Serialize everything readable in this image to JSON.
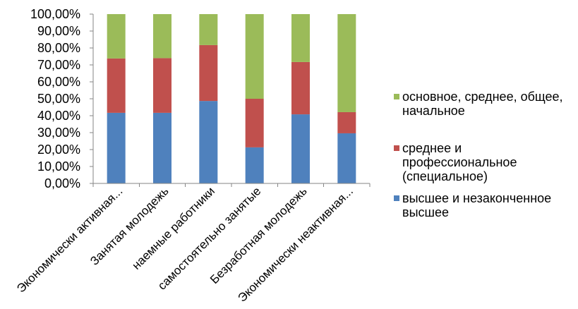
{
  "chart_data": {
    "type": "bar",
    "orientation": "vertical",
    "stacking": "percent",
    "categories": [
      "Экономически активная...",
      "Занятая молодежь",
      "наемные работники",
      "самостоятельно занятые",
      "Безработная молодежь",
      "Экономически неактивная..."
    ],
    "series": [
      {
        "name": "высшее и незаконченное высшее",
        "color": "#4F81BD",
        "values": [
          41.7,
          41.7,
          48.7,
          21.3,
          40.8,
          29.6
        ]
      },
      {
        "name": "среднее и профессиональное (специальное)",
        "color": "#C0504D",
        "values": [
          32.1,
          32.3,
          33.0,
          28.7,
          30.9,
          12.5
        ]
      },
      {
        "name": "основное, среднее, общее, начальное",
        "color": "#9BBB59",
        "values": [
          26.2,
          26.0,
          18.3,
          50.0,
          28.3,
          57.9
        ]
      }
    ],
    "ylim": [
      0,
      100
    ],
    "yticks": [
      0,
      10,
      20,
      30,
      40,
      50,
      60,
      70,
      80,
      90,
      100
    ],
    "ytick_labels": [
      "0,00%",
      "10,00%",
      "20,00%",
      "30,00%",
      "40,00%",
      "50,00%",
      "60,00%",
      "70,00%",
      "80,00%",
      "90,00%",
      "100,00%"
    ],
    "grid": false,
    "legend": "right"
  }
}
